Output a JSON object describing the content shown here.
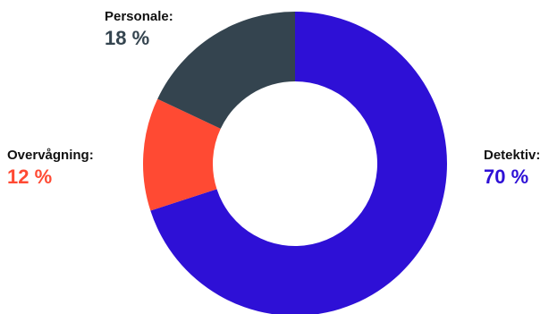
{
  "chart_data": {
    "type": "pie",
    "title": "",
    "categories": [
      "Detektiv",
      "Overvågning",
      "Personale"
    ],
    "values": [
      70,
      12,
      18
    ],
    "unit": "%",
    "colors": [
      "#2e10d6",
      "#ff4a33",
      "#34444f"
    ],
    "labels": [
      {
        "name": "Detektiv:",
        "value": "70 %"
      },
      {
        "name": "Overvågning:",
        "value": "12 %"
      },
      {
        "name": "Personale:",
        "value": "18 %"
      }
    ]
  }
}
